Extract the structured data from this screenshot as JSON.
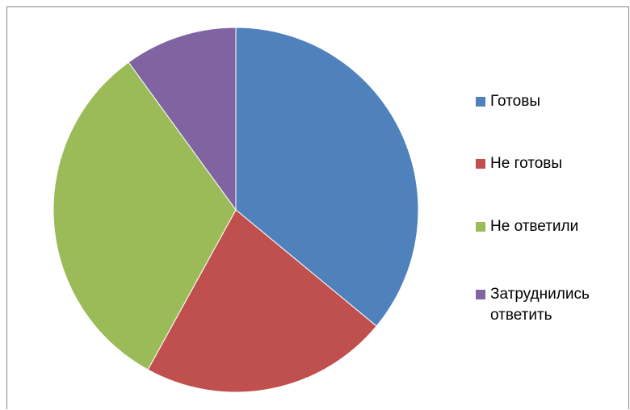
{
  "chart_data": {
    "type": "pie",
    "title": "",
    "categories": [
      "Готовы",
      "Не готовы",
      "Не ответили",
      "Затруднились ответить"
    ],
    "values": [
      36,
      22,
      32,
      10
    ],
    "colors": [
      "#4f81bd",
      "#c0504d",
      "#9bbb59",
      "#8064a2"
    ],
    "start_angle_deg": 0,
    "direction": "clockwise",
    "legend": {
      "position": "right",
      "labels": [
        "Готовы",
        "Не готовы",
        "Не ответили",
        "Затруднились\nответить"
      ]
    }
  }
}
